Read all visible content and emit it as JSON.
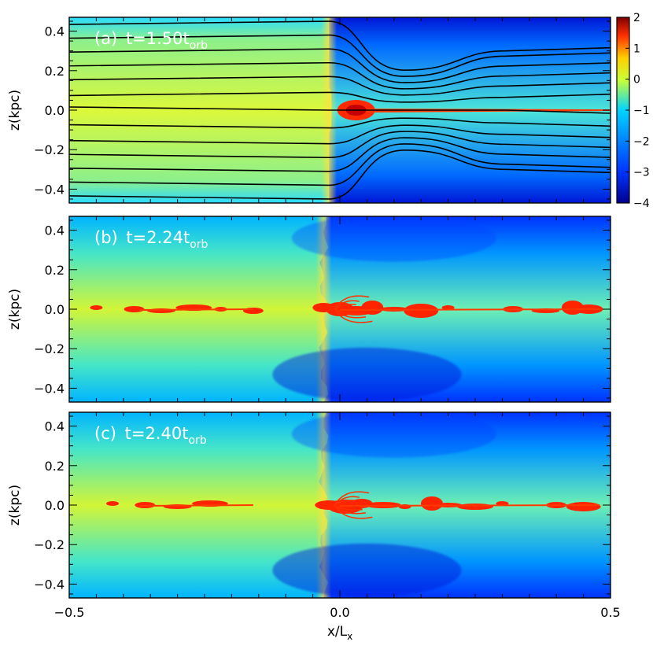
{
  "figure": {
    "xlabel": "x/L",
    "xlabel_sub": "x",
    "ylabel": "z(kpc)",
    "x_ticks": [
      "-0.5",
      "0.0",
      "0.5"
    ],
    "colors": {
      "colormap": [
        "#00008f",
        "#0034ff",
        "#00d4ff",
        "#c8ff38",
        "#ffd000",
        "#ff3000",
        "#7f0000"
      ],
      "field_lines": "#000000",
      "panel_label": "#ffffff"
    }
  },
  "chart_data": [
    {
      "type": "heatmap",
      "panel_label": "(a)",
      "time_text": "t=1.50t",
      "time_sub": "orb",
      "xlim": [
        -0.5,
        0.5
      ],
      "ylim": [
        -0.47,
        0.47
      ],
      "y_ticks": [
        "0.4",
        "0.2",
        "0.0",
        "-0.2",
        "-0.4"
      ],
      "shock_x": -0.02,
      "field_lines": true,
      "colorbar": {
        "range": [
          -4,
          2
        ],
        "tick_labels": [
          "2",
          "1",
          "0",
          "-1",
          "-2",
          "-3",
          "-4"
        ]
      },
      "field_line_z_left": [
        -0.45,
        -0.38,
        -0.31,
        -0.24,
        -0.17,
        -0.09,
        0.0,
        0.09,
        0.17,
        0.24,
        0.31,
        0.38,
        0.45
      ]
    },
    {
      "type": "heatmap",
      "panel_label": "(b)",
      "time_text": "t=2.24t",
      "time_sub": "orb",
      "xlim": [
        -0.5,
        0.5
      ],
      "ylim": [
        -0.47,
        0.47
      ],
      "y_ticks": [
        "0.4",
        "0.2",
        "0.0",
        "-0.2",
        "-0.4"
      ],
      "shock_x": -0.03,
      "field_lines": false,
      "dense_blobs_x": [
        -0.45,
        -0.38,
        -0.33,
        -0.27,
        -0.22,
        -0.16,
        -0.03,
        0.0,
        0.03,
        0.06,
        0.1,
        0.15,
        0.2,
        0.32,
        0.38,
        0.43,
        0.46
      ]
    },
    {
      "type": "heatmap",
      "panel_label": "(c)",
      "time_text": "t=2.40t",
      "time_sub": "orb",
      "xlim": [
        -0.5,
        0.5
      ],
      "ylim": [
        -0.47,
        0.47
      ],
      "y_ticks": [
        "0.4",
        "0.2",
        "0.0",
        "-0.2",
        "-0.4"
      ],
      "shock_x": -0.03,
      "field_lines": false,
      "dense_blobs_x": [
        -0.42,
        -0.36,
        -0.3,
        -0.24,
        -0.02,
        0.01,
        0.04,
        0.08,
        0.12,
        0.17,
        0.2,
        0.25,
        0.3,
        0.4,
        0.45
      ]
    }
  ]
}
